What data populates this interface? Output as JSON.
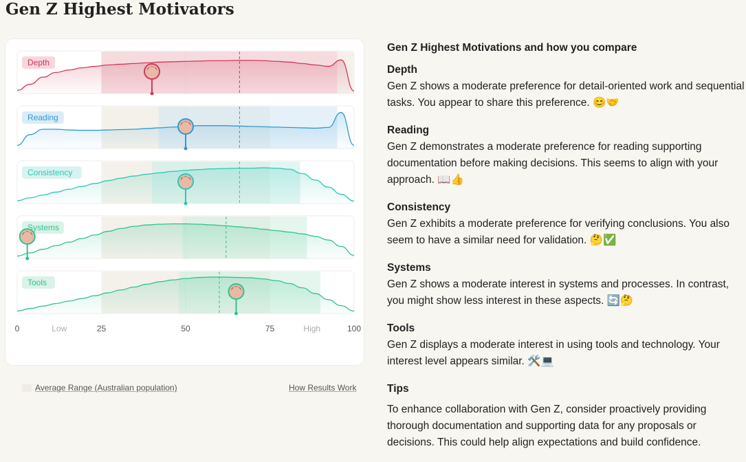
{
  "page_title": "Gen Z Highest Motivators",
  "chart": {
    "axis": {
      "ticks": [
        "0",
        "Low",
        "25",
        "50",
        "75",
        "High",
        "100"
      ]
    },
    "legend": "Average Range (Australian population)",
    "how_link": "How Results Work",
    "rows": [
      {
        "label": "Depth",
        "color": "#d2395a",
        "fill": "#f6c8d3",
        "avg_range": [
          25,
          100
        ],
        "band": [
          25,
          95
        ],
        "you": 40,
        "dashed": 66,
        "curve": [
          0.05,
          0.22,
          0.42,
          0.55,
          0.62,
          0.68,
          0.72,
          0.76,
          0.78,
          0.8,
          0.82,
          0.84,
          0.85,
          0.86,
          0.87,
          0.88,
          0.88,
          0.89,
          0.89,
          0.88,
          0.86,
          0.84,
          0.8,
          0.76,
          0.72,
          0.9,
          0.03
        ]
      },
      {
        "label": "Reading",
        "color": "#2f9ad0",
        "fill": "#cfe5f4",
        "avg_range": [
          25,
          75
        ],
        "band": [
          42,
          95
        ],
        "you": 50,
        "dashed": 66,
        "curve": [
          0.05,
          0.35,
          0.5,
          0.5,
          0.48,
          0.47,
          0.47,
          0.48,
          0.49,
          0.5,
          0.52,
          0.54,
          0.56,
          0.58,
          0.6,
          0.6,
          0.6,
          0.59,
          0.58,
          0.57,
          0.56,
          0.55,
          0.54,
          0.53,
          0.55,
          0.97,
          0.05
        ]
      },
      {
        "label": "Consistency",
        "color": "#2ec7b3",
        "fill": "#c9efe9",
        "avg_range": [
          25,
          75
        ],
        "band": [
          40,
          84
        ],
        "you": 50,
        "dashed": 66,
        "curve": [
          0.04,
          0.12,
          0.2,
          0.28,
          0.36,
          0.44,
          0.52,
          0.6,
          0.67,
          0.73,
          0.78,
          0.82,
          0.86,
          0.89,
          0.91,
          0.93,
          0.94,
          0.95,
          0.95,
          0.96,
          0.95,
          0.92,
          0.8,
          0.62,
          0.42,
          0.22,
          0.03
        ]
      },
      {
        "label": "Systems",
        "color": "#33c18f",
        "fill": "#cdeedf",
        "avg_range": [
          25,
          75
        ],
        "band": [
          49,
          86
        ],
        "you": 3,
        "dashed": 62,
        "curve": [
          0.03,
          0.12,
          0.22,
          0.32,
          0.42,
          0.52,
          0.62,
          0.72,
          0.8,
          0.86,
          0.9,
          0.92,
          0.93,
          0.93,
          0.92,
          0.9,
          0.88,
          0.85,
          0.82,
          0.78,
          0.74,
          0.7,
          0.65,
          0.58,
          0.48,
          0.3,
          0.05
        ]
      },
      {
        "label": "Tools",
        "color": "#33c18f",
        "fill": "#cdeedf",
        "avg_range": [
          25,
          75
        ],
        "band": [
          48,
          90
        ],
        "you": 65,
        "dashed": 60,
        "curve": [
          0.03,
          0.1,
          0.17,
          0.24,
          0.31,
          0.38,
          0.46,
          0.54,
          0.62,
          0.7,
          0.78,
          0.85,
          0.9,
          0.94,
          0.97,
          0.98,
          0.98,
          0.97,
          0.96,
          0.93,
          0.88,
          0.8,
          0.68,
          0.52,
          0.35,
          0.18,
          0.03
        ]
      }
    ]
  },
  "insights": {
    "heading": "Gen Z Highest Motivations and how you compare",
    "sections": [
      {
        "title": "Depth",
        "body": "Gen Z shows a moderate preference for detail-oriented work and sequential tasks.  You appear to share this preference. 😊🤝"
      },
      {
        "title": "Reading",
        "body": "Gen Z demonstrates a moderate preference for reading supporting documentation before making decisions. This seems to align with your approach. 📖👍"
      },
      {
        "title": "Consistency",
        "body": "Gen Z exhibits a moderate preference for verifying conclusions.  You also seem to have a similar need for validation. 🤔✅"
      },
      {
        "title": "Systems",
        "body": "Gen Z shows a moderate interest in systems and processes.  In contrast, you might show less interest in these aspects. 🔄🤔"
      },
      {
        "title": "Tools",
        "body": "Gen Z displays a moderate interest in using tools and technology. Your interest level appears similar.  🛠️💻"
      }
    ],
    "tips_title": "Tips",
    "tips_body": "To enhance collaboration with Gen Z, consider proactively providing thorough documentation and supporting data for any proposals or decisions.  This could help align expectations and build confidence."
  }
}
